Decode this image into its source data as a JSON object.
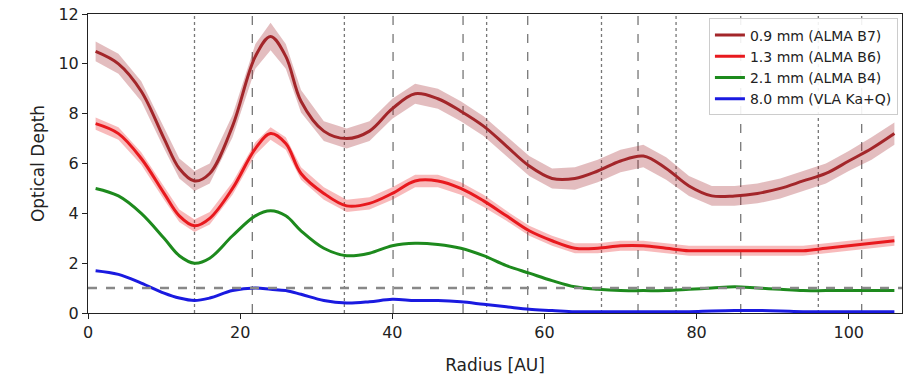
{
  "chart_data": {
    "type": "line",
    "x_label": "Radius [AU]",
    "y_label": "Optical Depth",
    "xlim": [
      0,
      107
    ],
    "ylim": [
      0,
      12
    ],
    "xticks": [
      0,
      20,
      40,
      60,
      80,
      100
    ],
    "yticks": [
      0,
      2,
      4,
      6,
      8,
      10,
      12
    ],
    "grid": false,
    "legend": "top right",
    "x": [
      1,
      4,
      7,
      10,
      12,
      14,
      16,
      19,
      22,
      24,
      26,
      28,
      31,
      34,
      37,
      40,
      43,
      46,
      49,
      52,
      55,
      58,
      61,
      64,
      67,
      70,
      73,
      76,
      79,
      82,
      85,
      88,
      91,
      94,
      97,
      100,
      103,
      106
    ],
    "series": [
      {
        "name": "0.9 mm (ALMA B7)",
        "color": "#a3262a",
        "values": [
          10.5,
          10.0,
          8.9,
          7.0,
          5.8,
          5.3,
          5.6,
          7.5,
          10.3,
          11.1,
          10.3,
          8.5,
          7.3,
          7.0,
          7.3,
          8.2,
          8.8,
          8.6,
          8.1,
          7.5,
          6.7,
          5.9,
          5.4,
          5.4,
          5.7,
          6.1,
          6.3,
          5.8,
          5.1,
          4.7,
          4.7,
          4.8,
          5.0,
          5.3,
          5.6,
          6.1,
          6.6,
          7.2
        ],
        "error": [
          0.4,
          0.4,
          0.4,
          0.4,
          0.4,
          0.4,
          0.4,
          0.45,
          0.5,
          0.55,
          0.5,
          0.45,
          0.4,
          0.4,
          0.4,
          0.4,
          0.4,
          0.4,
          0.4,
          0.4,
          0.4,
          0.4,
          0.4,
          0.45,
          0.45,
          0.45,
          0.45,
          0.45,
          0.4,
          0.4,
          0.4,
          0.4,
          0.4,
          0.4,
          0.4,
          0.4,
          0.45,
          0.45
        ]
      },
      {
        "name": "1.3 mm (ALMA B6)",
        "color": "#e8191e",
        "values": [
          7.6,
          7.2,
          6.2,
          4.8,
          3.9,
          3.5,
          3.8,
          5.0,
          6.6,
          7.2,
          6.8,
          5.6,
          4.8,
          4.3,
          4.4,
          4.8,
          5.3,
          5.3,
          5.0,
          4.5,
          3.9,
          3.3,
          2.9,
          2.6,
          2.6,
          2.7,
          2.7,
          2.6,
          2.5,
          2.5,
          2.5,
          2.5,
          2.5,
          2.5,
          2.6,
          2.7,
          2.8,
          2.9
        ],
        "error": [
          0.25,
          0.25,
          0.25,
          0.25,
          0.25,
          0.25,
          0.25,
          0.25,
          0.25,
          0.25,
          0.25,
          0.25,
          0.25,
          0.25,
          0.25,
          0.25,
          0.25,
          0.25,
          0.25,
          0.25,
          0.2,
          0.2,
          0.2,
          0.2,
          0.2,
          0.2,
          0.2,
          0.2,
          0.2,
          0.2,
          0.2,
          0.2,
          0.2,
          0.2,
          0.2,
          0.2,
          0.2,
          0.2
        ]
      },
      {
        "name": "2.1 mm (ALMA B4)",
        "color": "#1d8a1d",
        "values": [
          5.0,
          4.7,
          4.0,
          3.0,
          2.3,
          2.0,
          2.2,
          3.1,
          3.9,
          4.1,
          3.9,
          3.3,
          2.6,
          2.3,
          2.4,
          2.7,
          2.8,
          2.75,
          2.6,
          2.3,
          1.9,
          1.6,
          1.3,
          1.05,
          0.95,
          0.9,
          0.9,
          0.9,
          0.95,
          1.0,
          1.05,
          1.0,
          0.95,
          0.9,
          0.9,
          0.9,
          0.9,
          0.9
        ]
      },
      {
        "name": "8.0 mm (VLA Ka+Q)",
        "color": "#1a1ae0",
        "values": [
          1.7,
          1.55,
          1.2,
          0.8,
          0.6,
          0.5,
          0.6,
          0.9,
          1.0,
          0.95,
          0.9,
          0.75,
          0.5,
          0.4,
          0.45,
          0.55,
          0.5,
          0.5,
          0.45,
          0.35,
          0.25,
          0.15,
          0.1,
          0.05,
          0.05,
          0.05,
          0.05,
          0.05,
          0.05,
          0.08,
          0.1,
          0.1,
          0.08,
          0.05,
          0.05,
          0.05,
          0.05,
          0.05
        ]
      }
    ],
    "vlines": [
      {
        "x": 14.0,
        "line_style": "dotted"
      },
      {
        "x": 21.6,
        "line_style": "dashed"
      },
      {
        "x": 33.7,
        "line_style": "dotted"
      },
      {
        "x": 40.1,
        "line_style": "dashed"
      },
      {
        "x": 49.3,
        "line_style": "dashed"
      },
      {
        "x": 52.4,
        "line_style": "dotted"
      },
      {
        "x": 57.8,
        "line_style": "dashed"
      },
      {
        "x": 67.5,
        "line_style": "dotted"
      },
      {
        "x": 72.3,
        "line_style": "dashed"
      },
      {
        "x": 77.3,
        "line_style": "dotted"
      },
      {
        "x": 85.8,
        "line_style": "dashed"
      },
      {
        "x": 96.0,
        "line_style": "dotted"
      },
      {
        "x": 101.7,
        "line_style": "dashed"
      }
    ],
    "hlines": [
      {
        "y": 1,
        "line_style": "dashed"
      }
    ]
  }
}
